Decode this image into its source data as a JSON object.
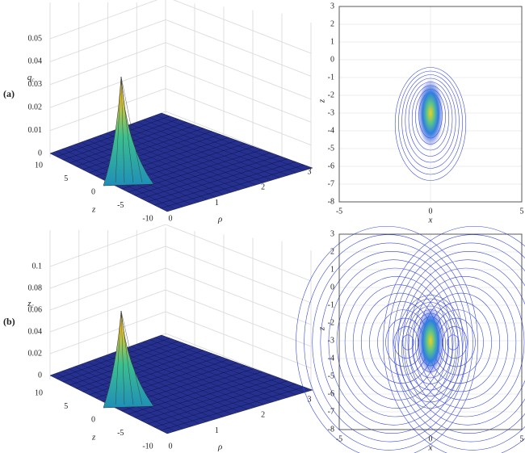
{
  "panels": [
    {
      "label": "(a)",
      "surface": {
        "vertical_label": {
          "base": "q",
          "sub": "c"
        },
        "vertical_ticks": [
          "0.05",
          "0.04",
          "0.03",
          "0.02",
          "0.01",
          "0"
        ],
        "depth_label": "z",
        "depth_ticks": [
          "10",
          "5",
          "0",
          "-5",
          "-10"
        ],
        "radial_label": "ρ",
        "radial_ticks": [
          "0",
          "1",
          "2",
          "3"
        ]
      },
      "contour": {
        "x_label": "x",
        "y_label": "z",
        "x_ticks": [
          "-5",
          "0",
          "5"
        ],
        "y_ticks": [
          "3",
          "2",
          "1",
          "0",
          "-1",
          "-2",
          "-3",
          "-4",
          "-5",
          "-6",
          "-7",
          "-8"
        ]
      }
    },
    {
      "label": "(b)",
      "surface": {
        "vertical_label": {
          "base": "z",
          "sub": "c"
        },
        "vertical_ticks": [
          "0.1",
          "0.08",
          "0.06",
          "0.04",
          "0.02",
          "0"
        ],
        "depth_label": "z",
        "depth_ticks": [
          "10",
          "5",
          "0",
          "-5",
          "-10"
        ],
        "radial_label": "ρ",
        "radial_ticks": [
          "0",
          "1",
          "2",
          "3"
        ]
      },
      "contour": {
        "x_label": "x",
        "y_label": "z",
        "x_ticks": [
          "-5",
          "0",
          "5"
        ],
        "y_ticks": [
          "3",
          "2",
          "1",
          "0",
          "-1",
          "-2",
          "-3",
          "-4",
          "-5",
          "-6",
          "-7",
          "-8"
        ]
      }
    }
  ]
}
